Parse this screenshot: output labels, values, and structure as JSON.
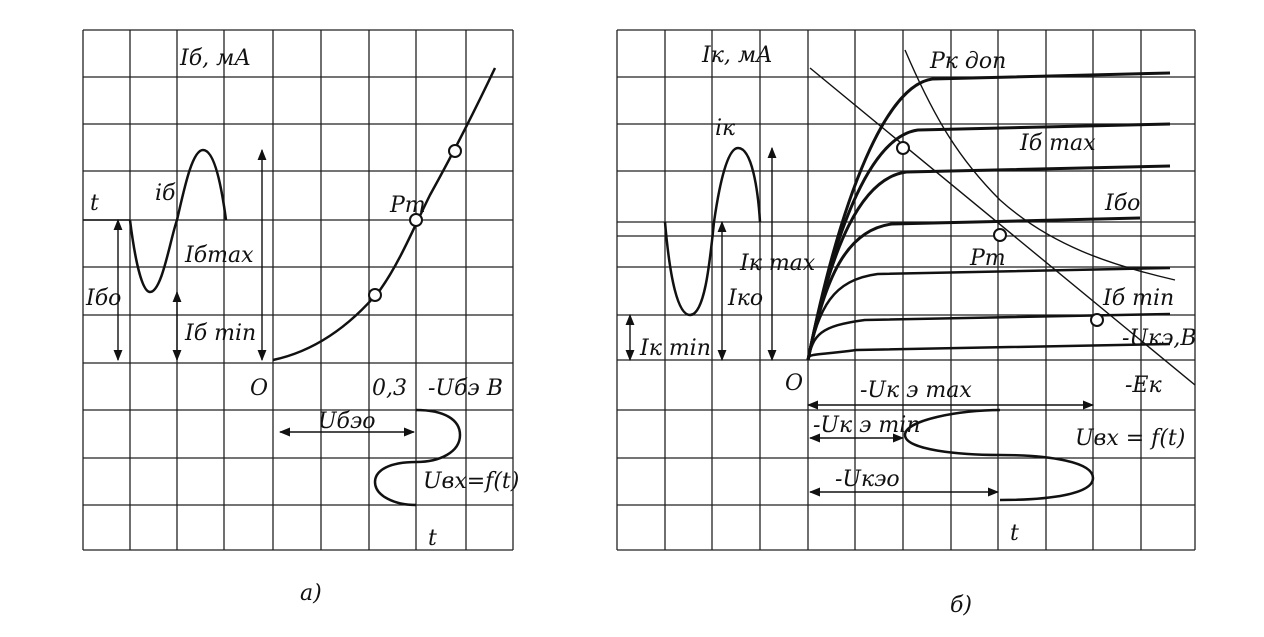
{
  "panel_a": {
    "caption": "а)",
    "labels": [
      "Iб, мА",
      "t",
      "iб",
      "Pт",
      "Iбmax",
      "Iбо",
      "Iб min",
      "O",
      "0,3",
      "-Uбэ В",
      "Uбэо",
      "Uвх=f(t)",
      "t"
    ]
  },
  "panel_b": {
    "caption": "б)",
    "labels": [
      "Iк, мА",
      "Pк доп",
      "Iб max",
      "iк",
      "Iбо",
      "Iк max",
      "Pт",
      "Iко",
      "Iб min",
      "-Uкэ,В",
      "Iк min",
      "O",
      "-Uк э max",
      "-Eк",
      "-Uк э min",
      "Uвх = f(t)",
      "-Uкэо",
      "t"
    ]
  }
}
